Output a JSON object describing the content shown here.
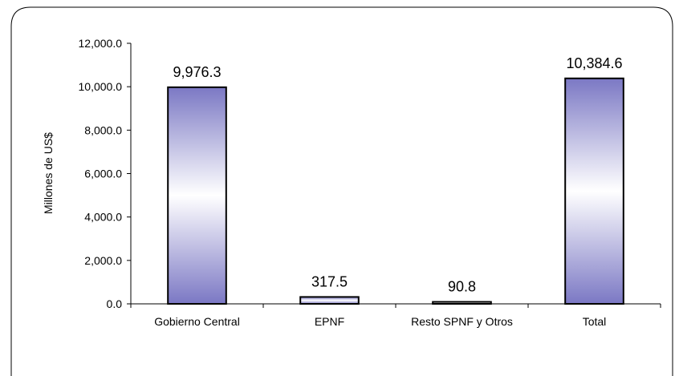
{
  "chart_data": {
    "type": "bar",
    "title": "",
    "xlabel": "",
    "ylabel": "Millones de US$",
    "ylim": [
      0,
      12000
    ],
    "yticks": [
      0,
      2000,
      4000,
      6000,
      8000,
      10000,
      12000
    ],
    "ytick_labels": [
      "0.0",
      "2,000.0",
      "4,000.0",
      "6,000.0",
      "8,000.0",
      "10,000.0",
      "12,000.0"
    ],
    "categories": [
      "Gobierno Central",
      "EPNF",
      "Resto SPNF y Otros",
      "Total"
    ],
    "values": [
      9976.3,
      317.5,
      90.8,
      10384.6
    ],
    "data_labels": [
      "9,976.3",
      "317.5",
      "90.8",
      "10,384.6"
    ],
    "grid": false,
    "legend": "none",
    "colors": {
      "bar_edge": "#7b78c4",
      "bar_center": "#ffffff",
      "bar_outline": "#000000",
      "axis": "#000000",
      "frame": "#000000"
    }
  }
}
